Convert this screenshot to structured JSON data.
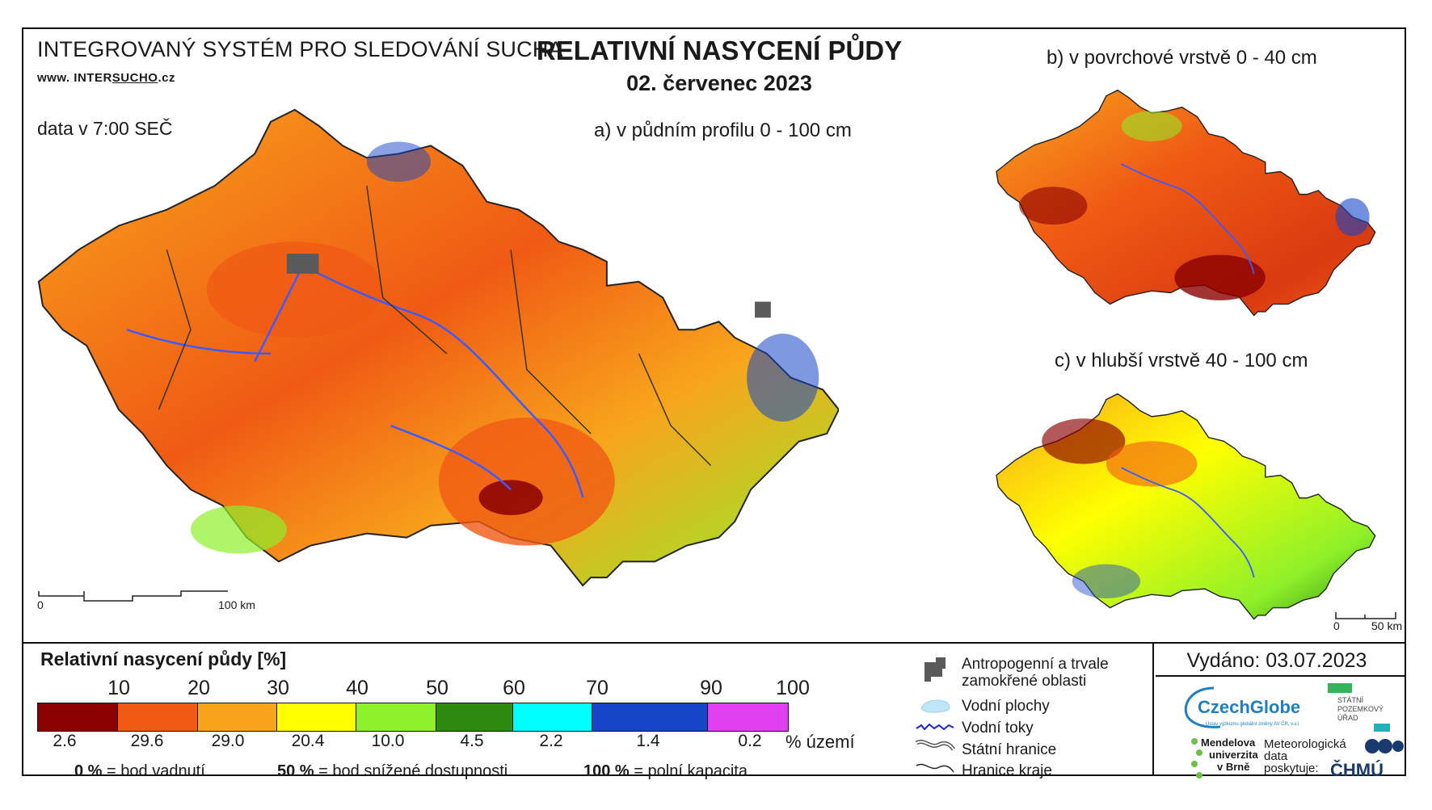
{
  "header": {
    "system_title": "INTEGROVANÝ SYSTÉM PRO SLEDOVÁNÍ SUCHA",
    "website_prefix": "www. INTER",
    "website_highlight": "SUCHO",
    "website_suffix": ".cz",
    "data_time": "data v 7:00 SEČ",
    "title": "RELATIVNÍ NASYCENÍ PŮDY",
    "date": "02. červenec 2023"
  },
  "maps": {
    "a": {
      "caption": "a) v půdním profilu 0 - 100 cm",
      "scale_start": "0",
      "scale_end": "100 km"
    },
    "b": {
      "caption": "b) v povrchové vrstvě 0 - 40 cm"
    },
    "c": {
      "caption": "c) v hlubší vrstvě 40 - 100 cm",
      "scale_start": "0",
      "scale_end": "50 km"
    }
  },
  "legend": {
    "title": "Relativní nasycení půdy [%]",
    "breaks": [
      "10",
      "20",
      "30",
      "40",
      "50",
      "60",
      "70",
      "90",
      "100"
    ],
    "bins": [
      {
        "color": "#8b0000",
        "share": "2.6"
      },
      {
        "color": "#f05a14",
        "share": "29.6"
      },
      {
        "color": "#f8a51c",
        "share": "29.0"
      },
      {
        "color": "#ffff00",
        "share": "20.4"
      },
      {
        "color": "#8ef02a",
        "share": "10.0"
      },
      {
        "color": "#2e8b10",
        "share": "4.5"
      },
      {
        "color": "#00ffff",
        "share": "2.2"
      },
      {
        "color": "#1646c8",
        "share": "1.4"
      },
      {
        "color": "#e040f0",
        "share": "0.2"
      }
    ],
    "share_unit": "% území",
    "explanations": [
      {
        "value": "0 %",
        "text": "= bod vadnutí"
      },
      {
        "value": "50 %",
        "text": "= bod snížené dostupnosti"
      },
      {
        "value": "100 %",
        "text": "= polní kapacita"
      }
    ]
  },
  "symbols": {
    "urban": "Antropogenní a trvale\nzamokřené oblasti",
    "urban_line1": "Antropogenní a trvale",
    "urban_line2": "zamokřené oblasti",
    "water_bodies": "Vodní plochy",
    "rivers": "Vodní toky",
    "state_border": "Státní hranice",
    "region_border": "Hranice kraje"
  },
  "footer": {
    "issued": "Vydáno: 03.07.2023",
    "czechglobe": "CzechGlobe",
    "czechglobe_sub": "Ústav výzkumu globální změny AV ČR, v.v.i.",
    "spu_lines": [
      "STÁTNÍ",
      "POZEMKOVÝ",
      "ÚŘAD"
    ],
    "mendel_lines": [
      "Mendelova",
      "univerzita",
      "v Brně"
    ],
    "meteo_lines": [
      "Meteorologická",
      "data",
      "poskytuje:"
    ],
    "chmu": "ČHMÚ"
  },
  "colors": {
    "frame": "#111111",
    "river": "#3b5bff",
    "border": "#333333",
    "urban": "#5a5a5a"
  }
}
